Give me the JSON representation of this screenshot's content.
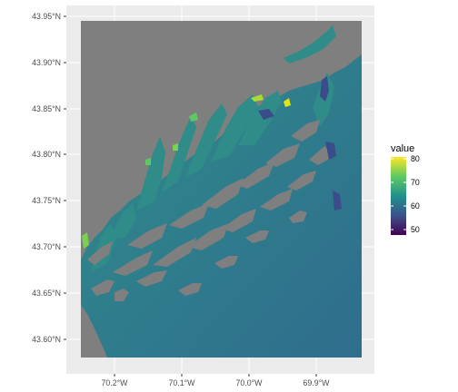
{
  "chart_data": {
    "type": "heatmap",
    "title": "",
    "xlabel": "",
    "ylabel": "",
    "grid": true,
    "x_ticks": [
      "70.2°W",
      "70.1°W",
      "70.0°W",
      "69.9°W"
    ],
    "y_ticks": [
      "43.95°N",
      "43.90°N",
      "43.85°N",
      "43.80°N",
      "43.75°N",
      "43.70°N",
      "43.65°N",
      "43.60°N"
    ],
    "legend": {
      "title": "value",
      "ticks": [
        "80",
        "70",
        "60",
        "50"
      ],
      "placement": "right"
    },
    "colormap": "viridis",
    "value_range": [
      47,
      81
    ],
    "land_color": "#7f7f7f",
    "panel_background": "#ebebeb",
    "grid_color": "#ffffff"
  }
}
